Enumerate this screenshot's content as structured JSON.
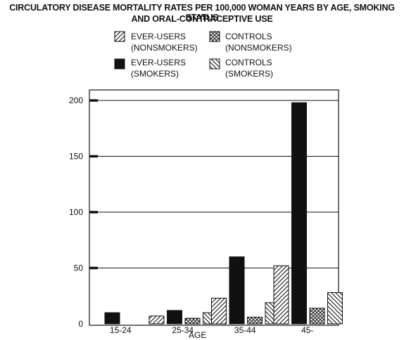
{
  "title": {
    "line1": "CIRCULATORY DISEASE MORTALITY RATES PER 100,000 WOMAN YEARS BY AGE, SMOKING STATUS",
    "line2": "AND ORAL-CONTRACEPTIVE USE"
  },
  "legend": [
    {
      "line1": "EVER-USERS",
      "line2": "(NONSMOKERS)",
      "pattern": "hatch-right"
    },
    {
      "line1": "EVER-USERS",
      "line2": "(SMOKERS)",
      "pattern": "solid"
    },
    {
      "line1": "CONTROLS",
      "line2": "(NONSMOKERS)",
      "pattern": "crosshatch"
    },
    {
      "line1": "CONTROLS",
      "line2": "(SMOKERS)",
      "pattern": "hatch-left"
    }
  ],
  "chart_data": {
    "type": "bar",
    "xlabel": "AGE",
    "ylabel": "",
    "categories": [
      "15-24",
      "25-34",
      "35-44",
      "45-"
    ],
    "ylim": [
      0,
      200
    ],
    "yticks": [
      0,
      50,
      100,
      150,
      200
    ],
    "grid": true,
    "legend_position": "top",
    "series": [
      {
        "name": "EVER-USERS (NONSMOKERS)",
        "pattern": "hatch-right",
        "values": [
          0,
          7,
          23,
          52
        ]
      },
      {
        "name": "EVER-USERS (SMOKERS)",
        "pattern": "solid",
        "values": [
          10,
          12,
          60,
          198
        ]
      },
      {
        "name": "CONTROLS (NONSMOKERS)",
        "pattern": "crosshatch",
        "values": [
          0,
          5,
          6,
          14
        ]
      },
      {
        "name": "CONTROLS (SMOKERS)",
        "pattern": "hatch-left",
        "values": [
          0,
          10,
          19,
          28
        ]
      }
    ]
  }
}
